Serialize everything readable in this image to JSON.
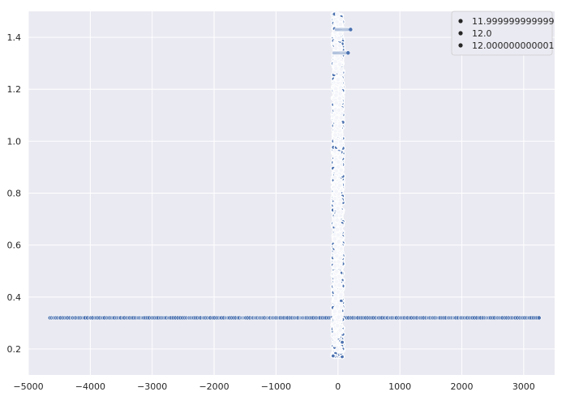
{
  "chart_data": {
    "type": "scatter",
    "title": "",
    "xlabel": "",
    "ylabel": "",
    "xlim": [
      -5000,
      3500
    ],
    "ylim": [
      0.1,
      1.5
    ],
    "x_ticks": [
      -5000,
      -4000,
      -3000,
      -2000,
      -1000,
      0,
      1000,
      2000,
      3000
    ],
    "y_ticks": [
      0.2,
      0.4,
      0.6,
      0.8,
      1.0,
      1.2,
      1.4
    ],
    "x_tick_labels": [
      "−5000",
      "−4000",
      "−3000",
      "−2000",
      "−1000",
      "0",
      "1000",
      "2000",
      "3000"
    ],
    "y_tick_labels": [
      "0.2",
      "0.4",
      "0.6",
      "0.8",
      "1.0",
      "1.2",
      "1.4"
    ],
    "grid": true,
    "background": "#eaeaf2",
    "legend": {
      "location": "top-right",
      "entries": [
        "11.999999999999",
        "12.0",
        "12.000000000001"
      ]
    },
    "marker_color": "#4c72b0",
    "marker_edge": "#ffffff",
    "series": [
      {
        "description": "horizontal band at y≈0.32",
        "y": 0.32,
        "x_min": -4650,
        "x_max": 3250
      },
      {
        "description": "vertical cluster near x≈0",
        "points": [
          {
            "x": -20,
            "y": 1.43
          },
          {
            "x": 210,
            "y": 1.43
          },
          {
            "x": -60,
            "y": 1.34
          },
          {
            "x": 170,
            "y": 1.34
          },
          {
            "x": -10,
            "y": 1.26
          },
          {
            "x": -110,
            "y": 1.06
          },
          {
            "x": 210,
            "y": 1.06
          },
          {
            "x": -500,
            "y": 1.03
          },
          {
            "x": 390,
            "y": 1.03
          },
          {
            "x": -80,
            "y": 0.97
          },
          {
            "x": 210,
            "y": 0.97
          },
          {
            "x": -150,
            "y": 0.69
          },
          {
            "x": 150,
            "y": 0.69
          },
          {
            "x": -200,
            "y": 0.64
          },
          {
            "x": 250,
            "y": 0.64
          },
          {
            "x": -580,
            "y": 0.59
          },
          {
            "x": 300,
            "y": 0.59
          },
          {
            "x": -120,
            "y": 0.42
          },
          {
            "x": 220,
            "y": 0.42
          },
          {
            "x": -200,
            "y": 0.24
          },
          {
            "x": 180,
            "y": 0.24
          },
          {
            "x": 0,
            "y": 0.17
          }
        ]
      }
    ]
  }
}
